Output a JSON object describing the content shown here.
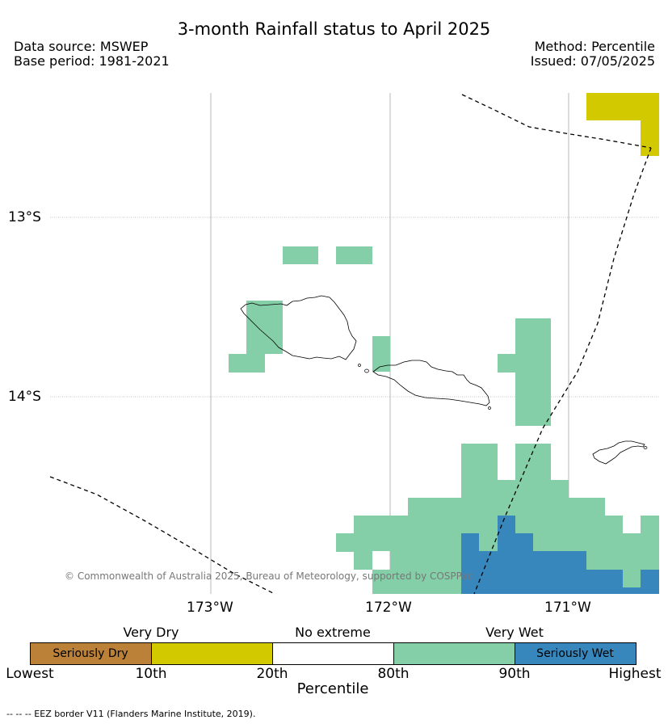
{
  "header": {
    "title": "3-month Rainfall status to April 2025",
    "data_source": "Data source: MSWEP",
    "base_period": "Base period: 1981-2021",
    "method": "Method: Percentile",
    "issued": "Issued: 07/05/2025"
  },
  "map": {
    "region": "Samoa",
    "lat_labels": [
      "13°S",
      "14°S"
    ],
    "lon_labels": [
      "173°W",
      "172°W",
      "171°W"
    ],
    "copyright": "© Commonwealth of Australia 2025, Bureau of Meteorology, supported by COSPPac",
    "colors": {
      "very_wet": "#85cfa8",
      "seriously_wet": "#3787bd",
      "very_dry": "#d2c900",
      "seriously_dry": "#bb8138",
      "coast": "#000000",
      "gridline": "#888888"
    }
  },
  "legend": {
    "top_labels": [
      "Very Dry",
      "No extreme",
      "Very Wet"
    ],
    "bottom_labels": [
      "Lowest",
      "10th",
      "20th",
      "80th",
      "90th",
      "Highest"
    ],
    "segments": [
      {
        "label": "Seriously Dry",
        "color": "#bb8138"
      },
      {
        "label": "",
        "color": "#d2c900"
      },
      {
        "label": "",
        "color": "#ffffff"
      },
      {
        "label": "",
        "color": "#85cfa8"
      },
      {
        "label": "Seriously Wet",
        "color": "#3787bd"
      }
    ],
    "axis_title": "Percentile"
  },
  "footnote": "--  --  -- EEZ border V11 (Flanders Marine Institute, 2019)."
}
